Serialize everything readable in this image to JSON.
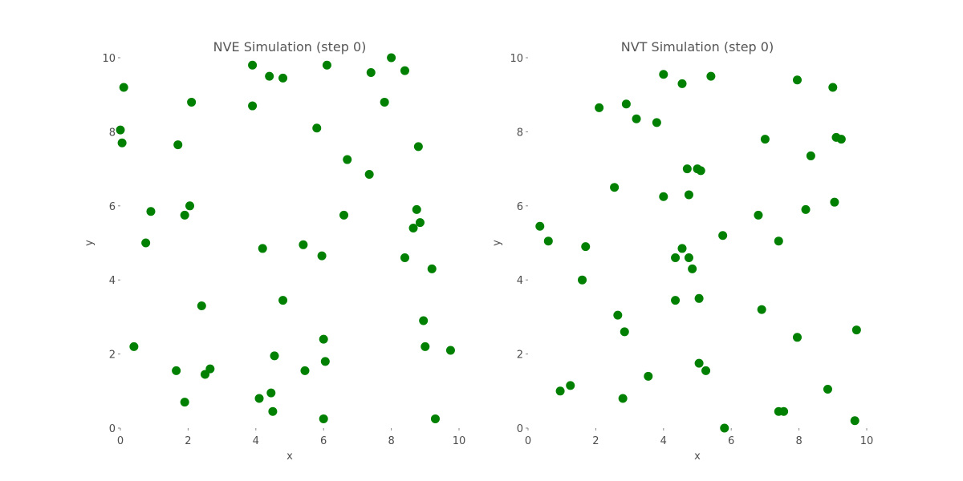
{
  "chart_data": [
    {
      "type": "scatter",
      "title": "NVE Simulation (step 0)",
      "xlabel": "x",
      "ylabel": "y",
      "xlim": [
        0,
        10
      ],
      "ylim": [
        0,
        10
      ],
      "xticks": [
        "0",
        "2",
        "4",
        "6",
        "8",
        "10"
      ],
      "yticks": [
        "0",
        "2",
        "4",
        "6",
        "8",
        "10"
      ],
      "grid": false,
      "marker_color": "#008000",
      "points": [
        [
          0.1,
          9.2
        ],
        [
          2.1,
          8.8
        ],
        [
          3.9,
          9.8
        ],
        [
          4.4,
          9.5
        ],
        [
          4.8,
          9.45
        ],
        [
          6.1,
          9.8
        ],
        [
          7.4,
          9.6
        ],
        [
          8.0,
          10.0
        ],
        [
          8.4,
          9.65
        ],
        [
          0.0,
          8.05
        ],
        [
          0.05,
          7.7
        ],
        [
          1.7,
          7.65
        ],
        [
          3.9,
          8.7
        ],
        [
          5.8,
          8.1
        ],
        [
          7.8,
          8.8
        ],
        [
          8.8,
          7.6
        ],
        [
          6.7,
          7.25
        ],
        [
          7.35,
          6.85
        ],
        [
          0.9,
          5.85
        ],
        [
          1.9,
          5.75
        ],
        [
          2.05,
          6.0
        ],
        [
          6.6,
          5.75
        ],
        [
          8.75,
          5.9
        ],
        [
          8.85,
          5.55
        ],
        [
          8.65,
          5.4
        ],
        [
          0.75,
          5.0
        ],
        [
          4.2,
          4.85
        ],
        [
          5.4,
          4.95
        ],
        [
          5.95,
          4.65
        ],
        [
          8.4,
          4.6
        ],
        [
          9.2,
          4.3
        ],
        [
          4.8,
          3.45
        ],
        [
          2.4,
          3.3
        ],
        [
          8.95,
          2.9
        ],
        [
          0.4,
          2.2
        ],
        [
          6.0,
          2.4
        ],
        [
          4.55,
          1.95
        ],
        [
          9.0,
          2.2
        ],
        [
          9.75,
          2.1
        ],
        [
          6.05,
          1.8
        ],
        [
          1.65,
          1.55
        ],
        [
          2.65,
          1.6
        ],
        [
          2.5,
          1.45
        ],
        [
          5.45,
          1.55
        ],
        [
          4.1,
          0.8
        ],
        [
          4.45,
          0.95
        ],
        [
          1.9,
          0.7
        ],
        [
          4.5,
          0.45
        ],
        [
          6.0,
          0.25
        ],
        [
          9.3,
          0.25
        ]
      ]
    },
    {
      "type": "scatter",
      "title": "NVT Simulation (step 0)",
      "xlabel": "x",
      "ylabel": "y",
      "xlim": [
        0,
        10
      ],
      "ylim": [
        0,
        10
      ],
      "xticks": [
        "0",
        "2",
        "4",
        "6",
        "8",
        "10"
      ],
      "yticks": [
        "0",
        "2",
        "4",
        "6",
        "8",
        "10"
      ],
      "grid": false,
      "marker_color": "#008000",
      "points": [
        [
          4.0,
          9.55
        ],
        [
          4.55,
          9.3
        ],
        [
          5.4,
          9.5
        ],
        [
          7.95,
          9.4
        ],
        [
          9.0,
          9.2
        ],
        [
          2.1,
          8.65
        ],
        [
          2.9,
          8.75
        ],
        [
          3.2,
          8.35
        ],
        [
          3.8,
          8.25
        ],
        [
          7.0,
          7.8
        ],
        [
          9.1,
          7.85
        ],
        [
          9.25,
          7.8
        ],
        [
          8.35,
          7.35
        ],
        [
          4.7,
          7.0
        ],
        [
          5.0,
          7.0
        ],
        [
          5.1,
          6.95
        ],
        [
          2.55,
          6.5
        ],
        [
          4.0,
          6.25
        ],
        [
          4.75,
          6.3
        ],
        [
          9.05,
          6.1
        ],
        [
          8.2,
          5.9
        ],
        [
          6.8,
          5.75
        ],
        [
          0.35,
          5.45
        ],
        [
          0.6,
          5.05
        ],
        [
          1.7,
          4.9
        ],
        [
          5.75,
          5.2
        ],
        [
          7.4,
          5.05
        ],
        [
          4.55,
          4.85
        ],
        [
          4.35,
          4.6
        ],
        [
          4.75,
          4.6
        ],
        [
          4.85,
          4.3
        ],
        [
          1.6,
          4.0
        ],
        [
          4.35,
          3.45
        ],
        [
          5.05,
          3.5
        ],
        [
          6.9,
          3.2
        ],
        [
          2.65,
          3.05
        ],
        [
          2.85,
          2.6
        ],
        [
          9.7,
          2.65
        ],
        [
          7.95,
          2.45
        ],
        [
          5.05,
          1.75
        ],
        [
          5.25,
          1.55
        ],
        [
          3.55,
          1.4
        ],
        [
          0.95,
          1.0
        ],
        [
          1.25,
          1.15
        ],
        [
          2.8,
          0.8
        ],
        [
          8.85,
          1.05
        ],
        [
          7.4,
          0.45
        ],
        [
          7.55,
          0.45
        ],
        [
          9.65,
          0.2
        ],
        [
          5.8,
          0.0
        ]
      ]
    }
  ]
}
